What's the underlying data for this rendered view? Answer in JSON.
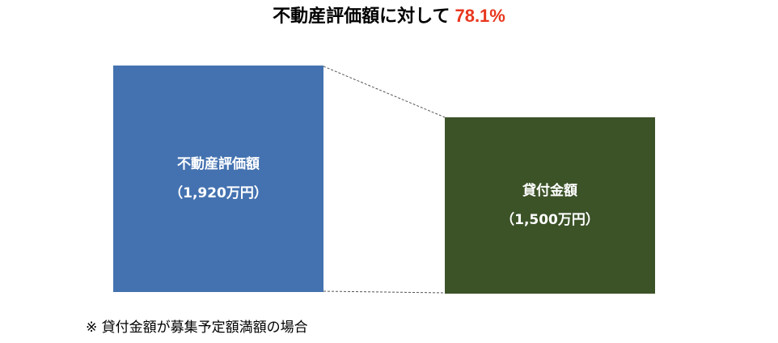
{
  "title": {
    "text": "不動産評価額に対して",
    "ratio": "78.1%",
    "ratio_color": "#e8361e"
  },
  "boxes": {
    "property": {
      "label": "不動産評価額",
      "amount": "（1,920万円）",
      "color": "#4472b0"
    },
    "loan": {
      "label": "貸付金額",
      "amount": "（1,500万円）",
      "color": "#3c5328"
    }
  },
  "note": "※ 貸付金額が募集予定額満額の場合"
}
